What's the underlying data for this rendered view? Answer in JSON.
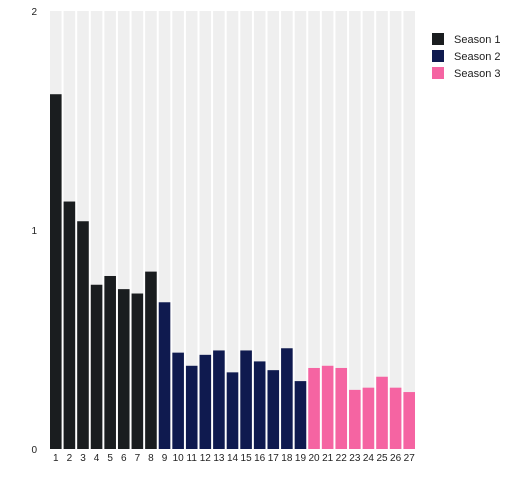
{
  "chart_data": {
    "type": "bar",
    "title": "",
    "xlabel": "",
    "ylabel": "",
    "ylim": [
      0,
      2
    ],
    "y_ticks": [
      "0",
      "1",
      "2"
    ],
    "grid": false,
    "column_background": "#efefef",
    "legend_position": "top-right",
    "series": [
      {
        "name": "Season 1",
        "color": "#1a1d1f",
        "categories": [
          "1",
          "2",
          "3",
          "4",
          "5",
          "6",
          "7",
          "8"
        ],
        "values": [
          1.62,
          1.13,
          1.04,
          0.75,
          0.79,
          0.73,
          0.71,
          0.81
        ]
      },
      {
        "name": "Season 2",
        "color": "#0f1a4f",
        "categories": [
          "9",
          "10",
          "11",
          "12",
          "13",
          "14",
          "15",
          "16",
          "17",
          "18",
          "19"
        ],
        "values": [
          0.67,
          0.44,
          0.38,
          0.43,
          0.45,
          0.35,
          0.45,
          0.4,
          0.36,
          0.46,
          0.31
        ]
      },
      {
        "name": "Season 3",
        "color": "#f564a2",
        "categories": [
          "20",
          "21",
          "22",
          "23",
          "24",
          "25",
          "26",
          "27"
        ],
        "values": [
          0.37,
          0.38,
          0.37,
          0.27,
          0.28,
          0.33,
          0.28,
          0.26
        ]
      }
    ]
  }
}
